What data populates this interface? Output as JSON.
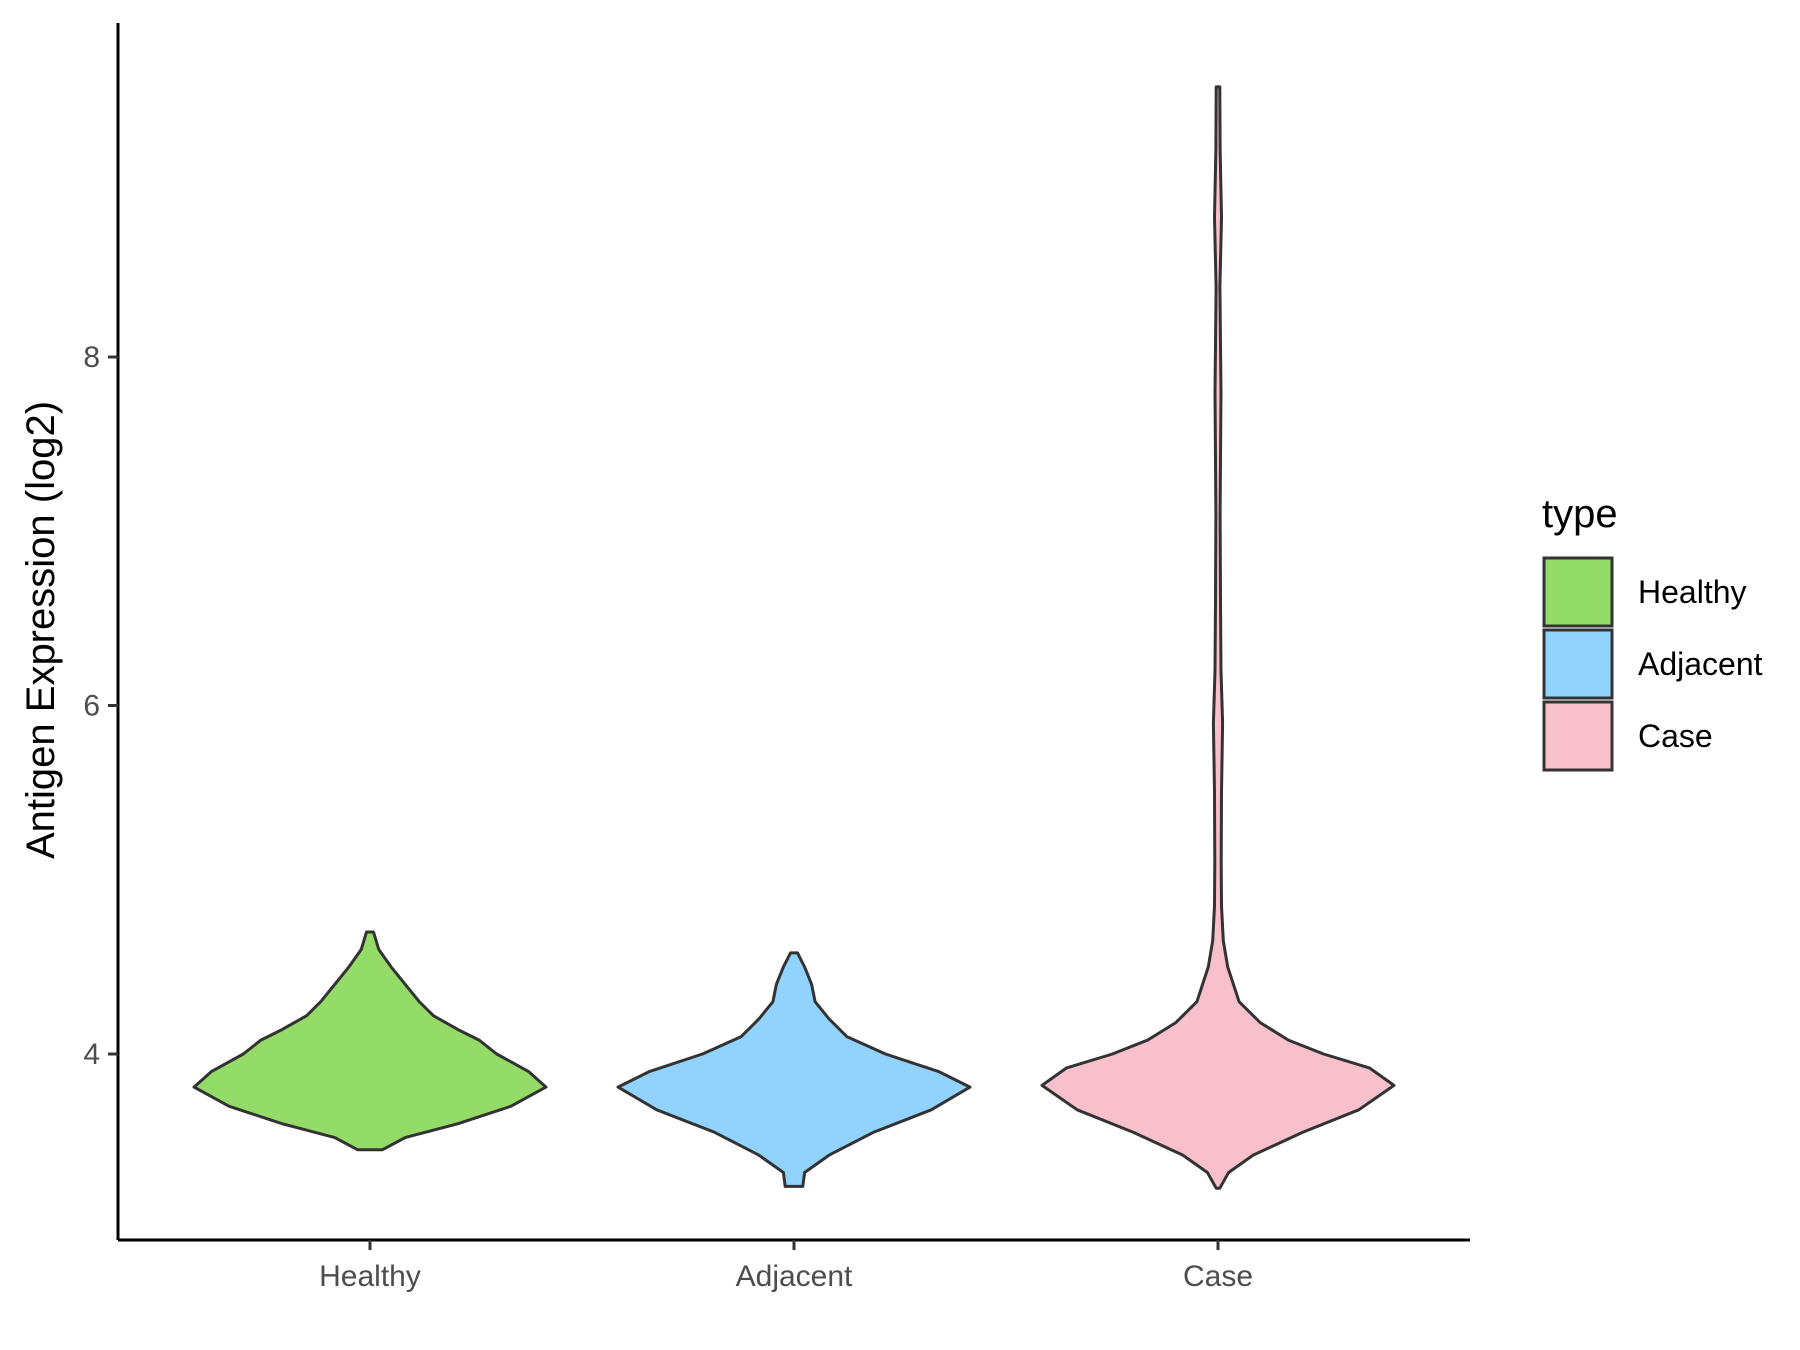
{
  "chart_data": {
    "type": "violin",
    "ylabel": "Antigen Expression (log2)",
    "xlabel": "",
    "ylim": [
      3.0,
      10.0
    ],
    "yticks": [
      4,
      6,
      8
    ],
    "grid": false,
    "legend": {
      "title": "type",
      "position": "right",
      "items": [
        "Healthy",
        "Adjacent",
        "Case"
      ]
    },
    "categories": [
      "Healthy",
      "Adjacent",
      "Case"
    ],
    "series": [
      {
        "name": "Healthy",
        "color": "#93dc68",
        "min": 3.45,
        "max": 4.7,
        "density": [
          [
            3.45,
            0.07
          ],
          [
            3.52,
            0.2
          ],
          [
            3.6,
            0.5
          ],
          [
            3.7,
            0.8
          ],
          [
            3.81,
            1.0
          ],
          [
            3.9,
            0.9
          ],
          [
            4.0,
            0.72
          ],
          [
            4.08,
            0.62
          ],
          [
            4.14,
            0.5
          ],
          [
            4.22,
            0.36
          ],
          [
            4.3,
            0.28
          ],
          [
            4.4,
            0.2
          ],
          [
            4.5,
            0.12
          ],
          [
            4.6,
            0.05
          ],
          [
            4.7,
            0.02
          ]
        ]
      },
      {
        "name": "Adjacent",
        "color": "#92d3fe",
        "min": 3.24,
        "max": 4.58,
        "density": [
          [
            3.24,
            0.05
          ],
          [
            3.32,
            0.06
          ],
          [
            3.42,
            0.2
          ],
          [
            3.55,
            0.45
          ],
          [
            3.68,
            0.78
          ],
          [
            3.81,
            1.0
          ],
          [
            3.9,
            0.82
          ],
          [
            4.0,
            0.52
          ],
          [
            4.1,
            0.3
          ],
          [
            4.2,
            0.2
          ],
          [
            4.3,
            0.12
          ],
          [
            4.4,
            0.1
          ],
          [
            4.5,
            0.06
          ],
          [
            4.58,
            0.02
          ]
        ]
      },
      {
        "name": "Case",
        "color": "#f8c0cb",
        "min": 3.23,
        "max": 9.55,
        "density": [
          [
            3.23,
            0.01
          ],
          [
            3.32,
            0.06
          ],
          [
            3.42,
            0.2
          ],
          [
            3.55,
            0.48
          ],
          [
            3.68,
            0.8
          ],
          [
            3.82,
            1.0
          ],
          [
            3.92,
            0.86
          ],
          [
            4.0,
            0.6
          ],
          [
            4.08,
            0.4
          ],
          [
            4.18,
            0.24
          ],
          [
            4.3,
            0.12
          ],
          [
            4.5,
            0.055
          ],
          [
            4.65,
            0.03
          ],
          [
            4.85,
            0.02
          ],
          [
            5.1,
            0.018
          ],
          [
            5.5,
            0.02
          ],
          [
            5.9,
            0.026
          ],
          [
            6.2,
            0.017
          ],
          [
            6.6,
            0.014
          ],
          [
            7.1,
            0.012
          ],
          [
            7.8,
            0.017
          ],
          [
            8.4,
            0.011
          ],
          [
            8.8,
            0.02
          ],
          [
            9.2,
            0.012
          ],
          [
            9.55,
            0.01
          ]
        ]
      }
    ]
  }
}
